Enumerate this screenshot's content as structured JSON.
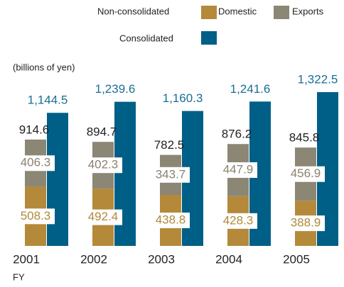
{
  "chart_data": {
    "type": "bar",
    "legend_group_label": "Non-consolidated",
    "y_unit_label": "(billions of yen)",
    "x_label": "FY",
    "categories": [
      "2001",
      "2002",
      "2003",
      "2004",
      "2005"
    ],
    "series": [
      {
        "name": "Domestic",
        "color": "#b5893a",
        "label_color": "#b08a3a",
        "values": [
          508.3,
          492.4,
          438.8,
          428.3,
          388.9
        ]
      },
      {
        "name": "Exports",
        "color": "#8c8675",
        "label_color": "#8a8270",
        "values": [
          406.3,
          402.3,
          343.7,
          447.9,
          456.9
        ]
      },
      {
        "name": "Consolidated",
        "color": "#005f87",
        "label_color": "#1a6e96",
        "values": [
          1144.5,
          1239.6,
          1160.3,
          1241.6,
          1322.5
        ],
        "value_labels": [
          "1,144.5",
          "1,239.6",
          "1,160.3",
          "1,241.6",
          "1,322.5"
        ]
      }
    ],
    "non_consolidated_totals": [
      914.6,
      894.7,
      782.5,
      876.2,
      845.8
    ]
  }
}
